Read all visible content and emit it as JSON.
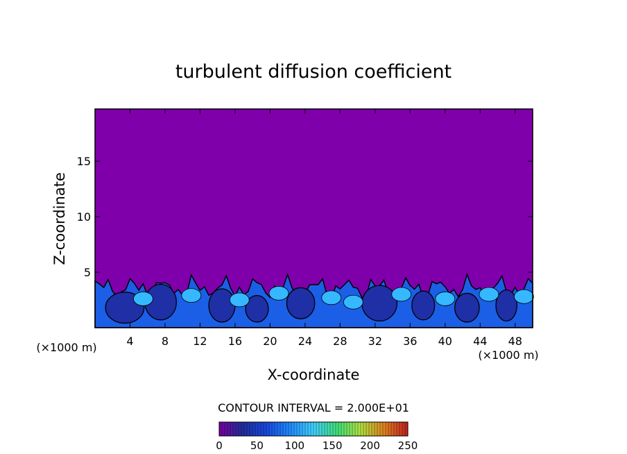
{
  "chart_data": {
    "type": "heatmap",
    "title": "turbulent diffusion coefficient",
    "xlabel": "X-coordinate",
    "ylabel": "Z-coordinate",
    "x_unit_left": "(×1000 m)",
    "x_unit_right": "(×1000 m)",
    "xlim": [
      0,
      50
    ],
    "ylim": [
      0,
      19.7
    ],
    "x_ticks": [
      4,
      8,
      12,
      16,
      20,
      24,
      28,
      32,
      36,
      40,
      44,
      48
    ],
    "y_ticks": [
      5,
      10,
      15
    ],
    "field_background_value": 0,
    "boundary_layer_top": 4.2,
    "contour_interval_text": "CONTOUR INTERVAL = 2.000E+01",
    "colorbar": {
      "min": 0,
      "max": 250,
      "ticks": [
        0,
        50,
        100,
        150,
        200,
        250
      ],
      "colors": [
        "#7a00a0",
        "#1f2f9e",
        "#1848e0",
        "#1f8bff",
        "#3fd0ff",
        "#3fe07a",
        "#b0e040",
        "#e08020",
        "#c02020"
      ]
    },
    "colors": {
      "background_field": "#7f00aa",
      "low_cell": "#1f2fa6",
      "mid": "#1a5fe6",
      "high": "#35b8ff"
    }
  }
}
